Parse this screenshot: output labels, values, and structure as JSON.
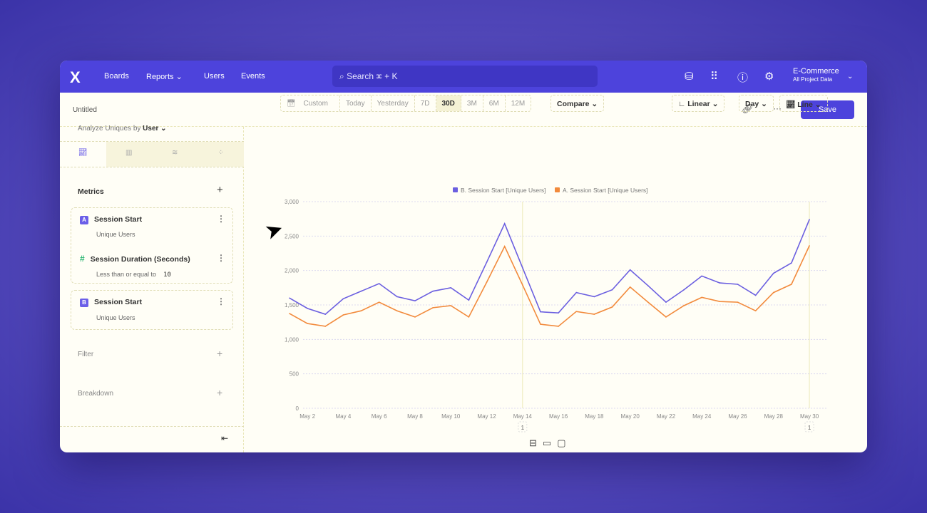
{
  "nav": {
    "logo": "X",
    "items": [
      "Boards",
      "Reports ⌄",
      "Users",
      "Events"
    ],
    "search": "Search  ⌘ + K",
    "project": "E-Commerce",
    "project_sub": "All Project Data"
  },
  "header": {
    "title": "Untitled",
    "save": "Save",
    "more": "···",
    "link_icon": "link-icon"
  },
  "left": {
    "analyze_label": "Analyze Uniques by",
    "analyze_value": "User ⌄",
    "metrics_title": "Metrics",
    "metrics": [
      {
        "badge": "A",
        "name": "Session Start",
        "sub": "Unique Users"
      },
      {
        "badge": "#",
        "name": "Session Duration (Seconds)",
        "sub": "Less than or equal to",
        "value": "10"
      },
      {
        "badge": "B",
        "name": "Session Start",
        "sub": "Unique Users"
      }
    ],
    "filter": "Filter",
    "breakdown": "Breakdown"
  },
  "toolbar": {
    "ranges": [
      "Custom",
      "Today",
      "Yesterday",
      "7D",
      "30D",
      "3M",
      "6M",
      "12M"
    ],
    "selected": "30D",
    "compare": "Compare ⌄",
    "scale": "Linear ⌄",
    "interval": "Day ⌄",
    "chart_type": "Line ⌄"
  },
  "colors": {
    "accent": "#4d43dc",
    "series_b": "#6b5fe0",
    "series_a": "#f28a3c"
  },
  "chart_data": {
    "type": "line",
    "ylim": [
      0,
      3000
    ],
    "yticks": [
      "0",
      "500",
      "1,000",
      "1,500",
      "2,000",
      "2,500",
      "3,000"
    ],
    "x": [
      "May 1",
      "May 2",
      "May 3",
      "May 4",
      "May 5",
      "May 6",
      "May 7",
      "May 8",
      "May 9",
      "May 10",
      "May 11",
      "May 12",
      "May 13",
      "May 14",
      "May 15",
      "May 16",
      "May 17",
      "May 18",
      "May 19",
      "May 20",
      "May 21",
      "May 22",
      "May 23",
      "May 24",
      "May 25",
      "May 26",
      "May 27",
      "May 28",
      "May 29",
      "May 30"
    ],
    "xticks": [
      "May 2",
      "May 4",
      "May 6",
      "May 8",
      "May 10",
      "May 12",
      "May 14",
      "May 16",
      "May 18",
      "May 20",
      "May 22",
      "May 24",
      "May 26",
      "May 28",
      "May 30"
    ],
    "annotations": [
      {
        "x": "May 14",
        "label": "1"
      },
      {
        "x": "May 30",
        "label": "1"
      }
    ],
    "series": [
      {
        "name": "B. Session Start [Unique Users]",
        "color": "#6b5fe0",
        "values": [
          1600,
          1450,
          1365,
          1590,
          1700,
          1810,
          1620,
          1560,
          1700,
          1750,
          1570,
          2120,
          2680,
          2040,
          1400,
          1385,
          1680,
          1620,
          1720,
          2010,
          1780,
          1540,
          1720,
          1920,
          1820,
          1800,
          1640,
          1960,
          2110,
          2740
        ]
      },
      {
        "name": "A. Session Start [Unique Users]",
        "color": "#f28a3c",
        "values": [
          1375,
          1230,
          1190,
          1355,
          1415,
          1540,
          1415,
          1325,
          1460,
          1490,
          1325,
          1830,
          2350,
          1790,
          1220,
          1190,
          1405,
          1365,
          1470,
          1760,
          1540,
          1325,
          1490,
          1610,
          1550,
          1540,
          1415,
          1680,
          1800,
          2360
        ]
      }
    ]
  }
}
